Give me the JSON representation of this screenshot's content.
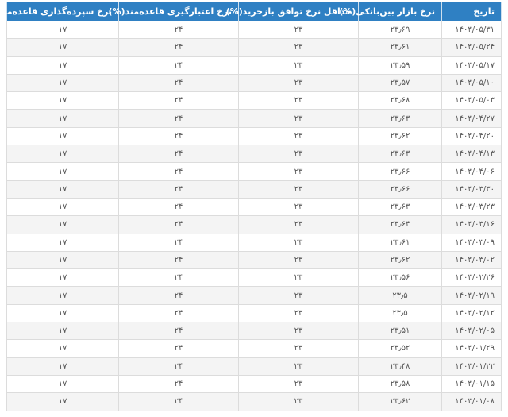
{
  "table": {
    "headers": [
      "تاریخ",
      "نرخ بازار بین‌بانکی(%)",
      "حداقل نرخ توافق بازخرید(%)",
      "نرخ اعتبارگیری قاعده‌مند(%)",
      "نرخ سپرده‌گذاری قاعده‌مند(%)"
    ],
    "rows": [
      [
        "۱۴۰۳/۰۵/۳۱",
        "۲۳٫۶۹",
        "۲۳",
        "۲۴",
        "۱۷"
      ],
      [
        "۱۴۰۳/۰۵/۲۴",
        "۲۳٫۶۱",
        "۲۳",
        "۲۴",
        "۱۷"
      ],
      [
        "۱۴۰۳/۰۵/۱۷",
        "۲۳٫۵۹",
        "۲۳",
        "۲۴",
        "۱۷"
      ],
      [
        "۱۴۰۳/۰۵/۱۰",
        "۲۳٫۵۷",
        "۲۳",
        "۲۴",
        "۱۷"
      ],
      [
        "۱۴۰۳/۰۵/۰۳",
        "۲۳٫۶۸",
        "۲۳",
        "۲۴",
        "۱۷"
      ],
      [
        "۱۴۰۳/۰۴/۲۷",
        "۲۳٫۶۳",
        "۲۳",
        "۲۴",
        "۱۷"
      ],
      [
        "۱۴۰۳/۰۴/۲۰",
        "۲۳٫۶۲",
        "۲۳",
        "۲۴",
        "۱۷"
      ],
      [
        "۱۴۰۳/۰۴/۱۳",
        "۲۳٫۶۳",
        "۲۳",
        "۲۴",
        "۱۷"
      ],
      [
        "۱۴۰۳/۰۴/۰۶",
        "۲۳٫۶۶",
        "۲۳",
        "۲۴",
        "۱۷"
      ],
      [
        "۱۴۰۳/۰۳/۳۰",
        "۲۳٫۶۶",
        "۲۳",
        "۲۴",
        "۱۷"
      ],
      [
        "۱۴۰۳/۰۳/۲۳",
        "۲۳٫۶۳",
        "۲۳",
        "۲۴",
        "۱۷"
      ],
      [
        "۱۴۰۳/۰۳/۱۶",
        "۲۳٫۶۴",
        "۲۳",
        "۲۴",
        "۱۷"
      ],
      [
        "۱۴۰۳/۰۳/۰۹",
        "۲۳٫۶۱",
        "۲۳",
        "۲۴",
        "۱۷"
      ],
      [
        "۱۴۰۳/۰۳/۰۲",
        "۲۳٫۶۲",
        "۲۳",
        "۲۴",
        "۱۷"
      ],
      [
        "۱۴۰۳/۰۲/۲۶",
        "۲۳٫۵۶",
        "۲۳",
        "۲۴",
        "۱۷"
      ],
      [
        "۱۴۰۳/۰۲/۱۹",
        "۲۳٫۵",
        "۲۳",
        "۲۴",
        "۱۷"
      ],
      [
        "۱۴۰۳/۰۲/۱۲",
        "۲۳٫۵",
        "۲۳",
        "۲۴",
        "۱۷"
      ],
      [
        "۱۴۰۳/۰۲/۰۵",
        "۲۳٫۵۱",
        "۲۳",
        "۲۴",
        "۱۷"
      ],
      [
        "۱۴۰۳/۰۱/۲۹",
        "۲۳٫۵۲",
        "۲۳",
        "۲۴",
        "۱۷"
      ],
      [
        "۱۴۰۳/۰۱/۲۲",
        "۲۳٫۴۸",
        "۲۳",
        "۲۴",
        "۱۷"
      ],
      [
        "۱۴۰۳/۰۱/۱۵",
        "۲۳٫۵۸",
        "۲۳",
        "۲۴",
        "۱۷"
      ],
      [
        "۱۴۰۳/۰۱/۰۸",
        "۲۳٫۶۲",
        "۲۳",
        "۲۴",
        "۱۷"
      ]
    ]
  },
  "colors": {
    "header_bg": "#2f80c3",
    "header_text": "#ffffff",
    "row_alt": "#f4f4f4"
  }
}
